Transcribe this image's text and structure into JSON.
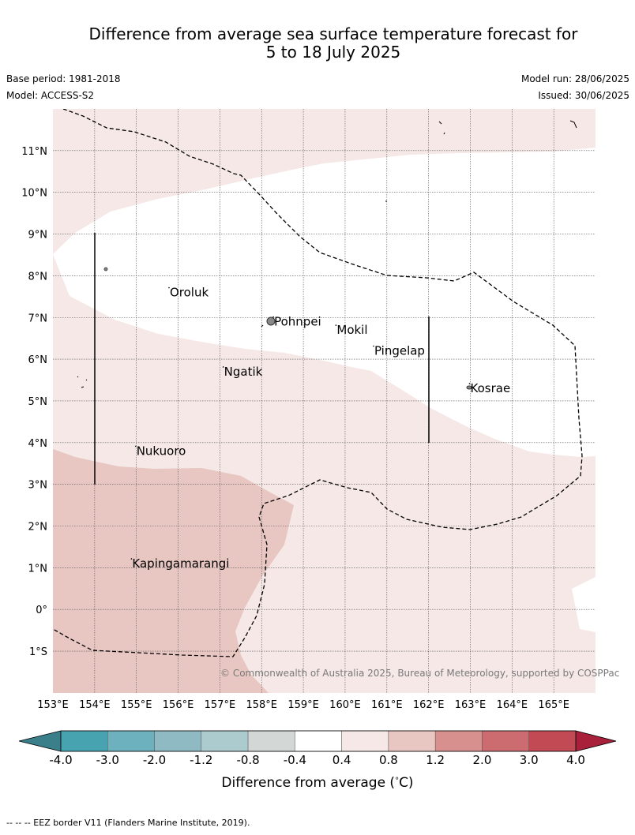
{
  "title_line1": "Difference from average sea surface temperature forecast for",
  "title_line2": "5 to 18 July 2025",
  "base_period": "Base period: 1981-2018",
  "model": "Model: ACCESS-S2",
  "model_run": "Model run: 28/06/2025",
  "issued": "Issued: 30/06/2025",
  "copyright": "© Commonwealth of Australia 2025, Bureau of Meteorology, supported by COSPPac",
  "footnote": "--  --  -- EEZ border V11 (Flanders Marine Institute, 2019).",
  "map": {
    "lon_range": [
      153,
      166
    ],
    "lat_range": [
      -2,
      12
    ],
    "lon_ticks": [
      "153°E",
      "154°E",
      "155°E",
      "156°E",
      "157°E",
      "158°E",
      "159°E",
      "160°E",
      "161°E",
      "162°E",
      "163°E",
      "164°E",
      "165°E"
    ],
    "lat_ticks": [
      "11°N",
      "10°N",
      "9°N",
      "8°N",
      "7°N",
      "6°N",
      "5°N",
      "4°N",
      "3°N",
      "2°N",
      "1°N",
      "0°",
      "1°S"
    ],
    "places": [
      {
        "name": "Oroluk",
        "lon": 155.8,
        "lat": 7.6
      },
      {
        "name": "Pohnpei",
        "lon": 158.3,
        "lat": 6.9
      },
      {
        "name": "Mokil",
        "lon": 159.8,
        "lat": 6.7
      },
      {
        "name": "Pingelap",
        "lon": 160.7,
        "lat": 6.2
      },
      {
        "name": "Ngatik",
        "lon": 157.1,
        "lat": 5.7
      },
      {
        "name": "Kosrae",
        "lon": 163.0,
        "lat": 5.3
      },
      {
        "name": "Nukuoro",
        "lon": 155.0,
        "lat": 3.8
      },
      {
        "name": "Kapingamarangi",
        "lon": 154.9,
        "lat": 1.1
      }
    ],
    "colors": {
      "band_0_4_0_8": "#f5e8e6",
      "band_0_8_1_2": "#e8c6c1"
    }
  },
  "colorbar": {
    "ticks": [
      "-4.0",
      "-3.0",
      "-2.0",
      "-1.2",
      "-0.8",
      "-0.4",
      "0.4",
      "0.8",
      "1.2",
      "2.0",
      "3.0",
      "4.0"
    ],
    "colors": [
      "#48a3b1",
      "#6cb1bd",
      "#8fbac3",
      "#abcbce",
      "#d3d8d7",
      "#ffffff",
      "#f5e8e6",
      "#e8c6c1",
      "#d8908f",
      "#cc6b70",
      "#c24a55"
    ],
    "low_extend_color": "#3a7f8a",
    "high_extend_color": "#a8203a",
    "label": "Difference from average (",
    "label_unit": "°",
    "label_end": "C)"
  }
}
